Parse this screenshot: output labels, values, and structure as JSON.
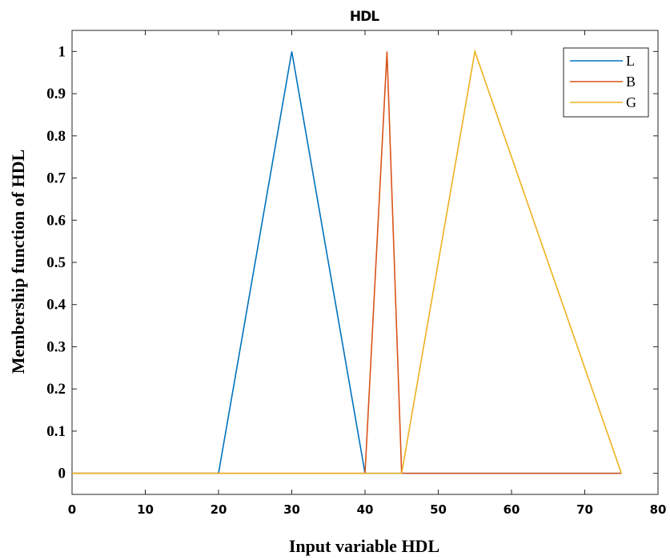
{
  "chart_data": {
    "type": "line",
    "title": "HDL",
    "xlabel": "Input variable HDL",
    "ylabel": "Membership function of HDL",
    "xlim": [
      0,
      80
    ],
    "ylim": [
      -0.05,
      1.05
    ],
    "xticks": [
      0,
      10,
      20,
      30,
      40,
      50,
      60,
      70,
      80
    ],
    "yticks": [
      0,
      0.1,
      0.2,
      0.3,
      0.4,
      0.5,
      0.6,
      0.7,
      0.8,
      0.9,
      1
    ],
    "grid": false,
    "legend_position": "top-right",
    "series": [
      {
        "name": "L",
        "color": "#0072BD",
        "x": [
          0,
          20,
          30,
          40,
          75
        ],
        "y": [
          0,
          0,
          1,
          0,
          0
        ]
      },
      {
        "name": "B",
        "color": "#D95319",
        "x": [
          0,
          40,
          43,
          45,
          75
        ],
        "y": [
          0,
          0,
          1,
          0,
          0
        ]
      },
      {
        "name": "G",
        "color": "#EDB120",
        "x": [
          0,
          45,
          55,
          75,
          75
        ],
        "y": [
          0,
          0,
          1,
          0,
          0
        ]
      }
    ]
  }
}
